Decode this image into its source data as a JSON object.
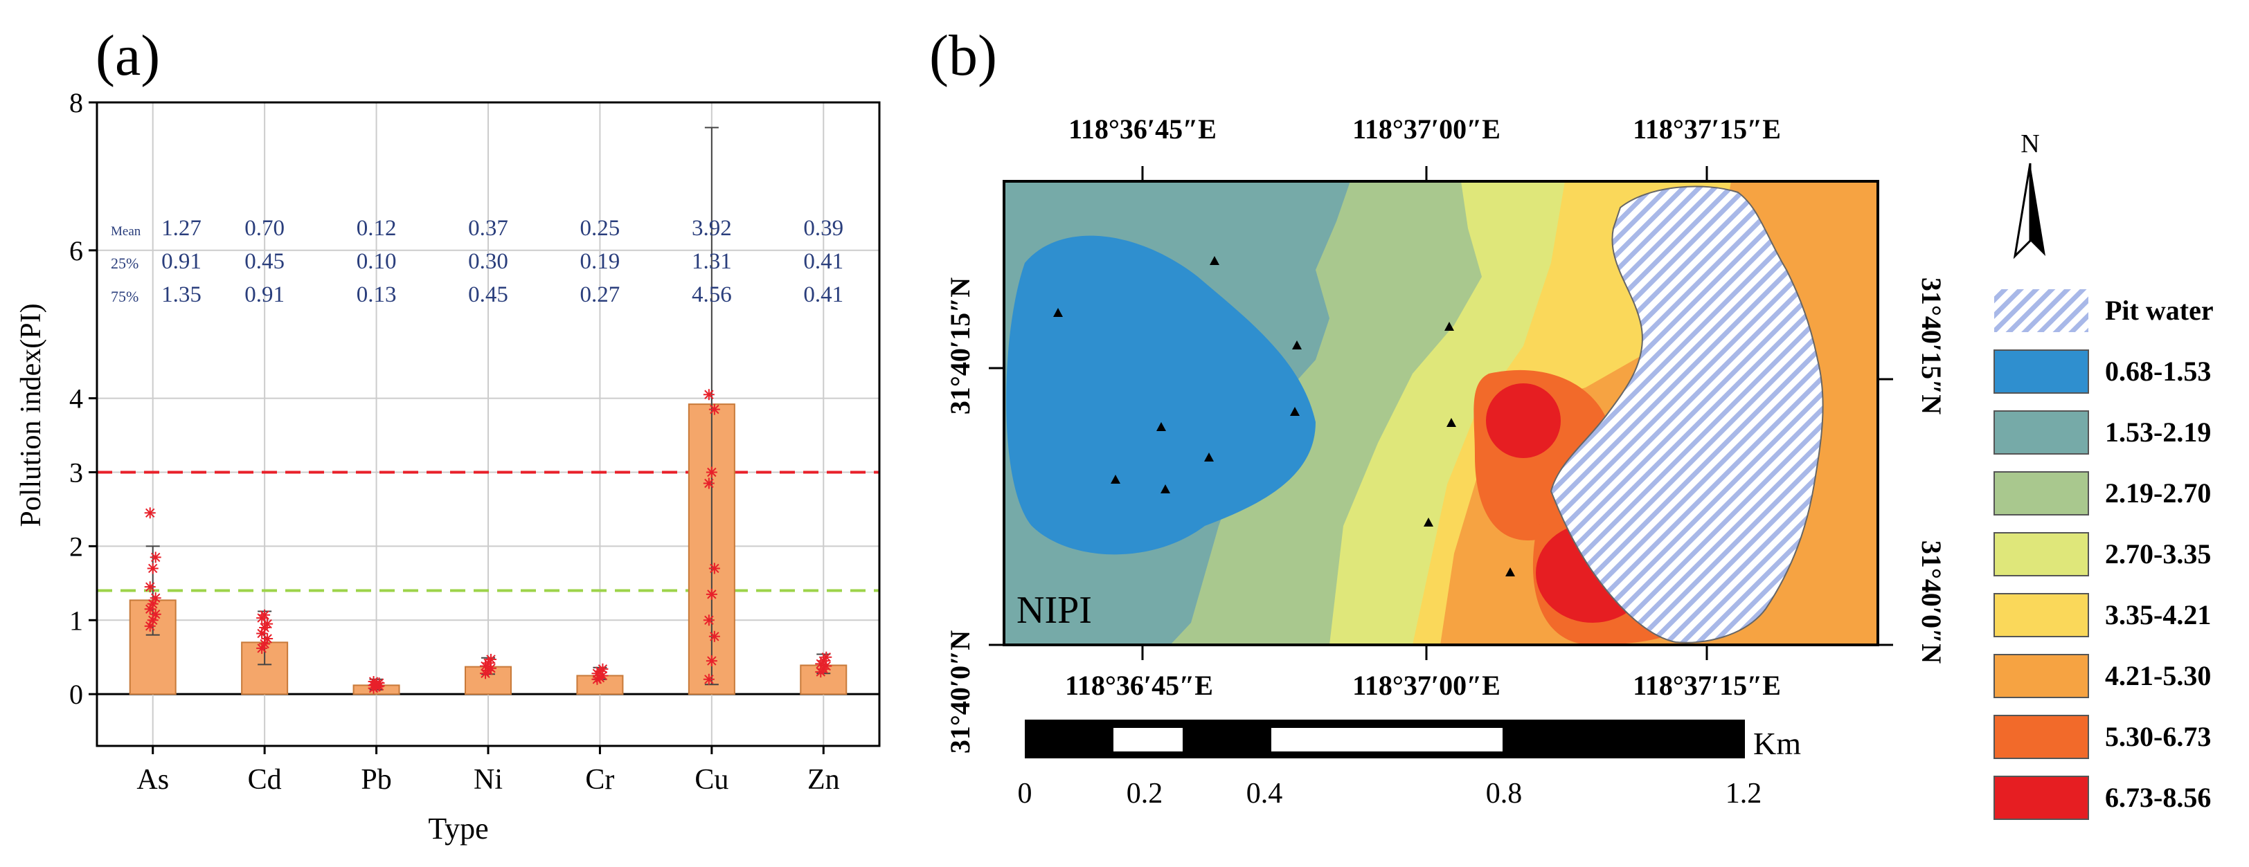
{
  "chart_data": [
    {
      "type": "bar",
      "panel_label": "(a)",
      "title": "",
      "xlabel": "Type",
      "ylabel": "Pollution index(PI)",
      "ylim": [
        -0.7,
        8
      ],
      "yticks": [
        "0",
        "1",
        "2",
        "3",
        "4",
        "6",
        "8"
      ],
      "ytick_values": [
        0,
        1,
        2,
        3,
        4,
        6,
        8
      ],
      "categories": [
        "As",
        "Cd",
        "Pb",
        "Ni",
        "Cr",
        "Cu",
        "Zn"
      ],
      "values": [
        1.27,
        0.7,
        0.12,
        0.37,
        0.25,
        3.92,
        0.39
      ],
      "whiskers": [
        [
          0.8,
          2.0
        ],
        [
          0.4,
          1.12
        ],
        [
          0.06,
          0.2
        ],
        [
          0.27,
          0.49
        ],
        [
          0.2,
          0.36
        ],
        [
          0.13,
          7.66
        ],
        [
          0.28,
          0.54
        ]
      ],
      "points": [
        [
          0.92,
          1.0,
          1.08,
          1.15,
          1.22,
          1.3,
          1.45,
          1.7,
          1.85,
          2.45
        ],
        [
          0.62,
          0.68,
          0.75,
          0.82,
          0.9,
          0.95,
          1.03,
          1.07
        ],
        [
          0.08,
          0.1,
          0.11,
          0.12,
          0.13,
          0.15,
          0.17
        ],
        [
          0.28,
          0.32,
          0.35,
          0.38,
          0.42,
          0.47
        ],
        [
          0.2,
          0.22,
          0.25,
          0.28,
          0.31,
          0.34
        ],
        [
          0.2,
          0.45,
          0.78,
          1.0,
          1.35,
          1.7,
          2.85,
          3.0,
          3.85,
          4.05
        ],
        [
          0.3,
          0.34,
          0.38,
          0.41,
          0.45,
          0.5
        ]
      ],
      "reference_lines": [
        {
          "value": 3,
          "color": "#e8202a",
          "style": "dashed"
        },
        {
          "value": 1.4,
          "color": "#9dd34a",
          "style": "dashed"
        }
      ],
      "stats": {
        "row_labels": [
          "Mean",
          "25%",
          "75%"
        ],
        "rows": [
          [
            "1.27",
            "0.70",
            "0.12",
            "0.37",
            "0.25",
            "3.92",
            "0.39"
          ],
          [
            "0.91",
            "0.45",
            "0.10",
            "0.30",
            "0.19",
            "1.31",
            "0.41"
          ],
          [
            "1.35",
            "0.91",
            "0.13",
            "0.45",
            "0.27",
            "4.56",
            "0.41"
          ]
        ]
      },
      "colors": {
        "bar": "#f4a66a",
        "bar_edge": "#c87a3a",
        "point": "#e8202a",
        "stat_text": "#2a3e7c"
      }
    },
    {
      "type": "heatmap",
      "panel_label": "(b)",
      "map_label": "NIPI",
      "top_axis_labels": [
        "118°36′45″E",
        "118°37′00″E",
        "118°37′15″E"
      ],
      "bottom_axis_labels": [
        "118°36′45″E",
        "118°37′00″E",
        "118°37′15″E"
      ],
      "left_axis_labels": [
        "31°40′15″N",
        "31°40′0″N"
      ],
      "right_axis_labels": [
        "31°40′15″N",
        "31°40′0″N"
      ],
      "north_label": "N",
      "scale_unit": "Km",
      "scale_ticks": [
        "0",
        "0.2",
        "0.4",
        "0.8",
        "1.2"
      ],
      "legend": [
        {
          "label": "Pit water",
          "color": "#a8b8e8"
        },
        {
          "label": "0.68-1.53",
          "color": "#2f8fcf"
        },
        {
          "label": "1.53-2.19",
          "color": "#76aaa8"
        },
        {
          "label": "2.19-2.70",
          "color": "#a9c88e"
        },
        {
          "label": "2.70-3.35",
          "color": "#dfe77a"
        },
        {
          "label": "3.35-4.21",
          "color": "#fad85a"
        },
        {
          "label": "4.21-5.30",
          "color": "#f6a342"
        },
        {
          "label": "5.30-6.73",
          "color": "#f26a2a"
        },
        {
          "label": "6.73-8.56",
          "color": "#e61e22"
        }
      ]
    }
  ]
}
